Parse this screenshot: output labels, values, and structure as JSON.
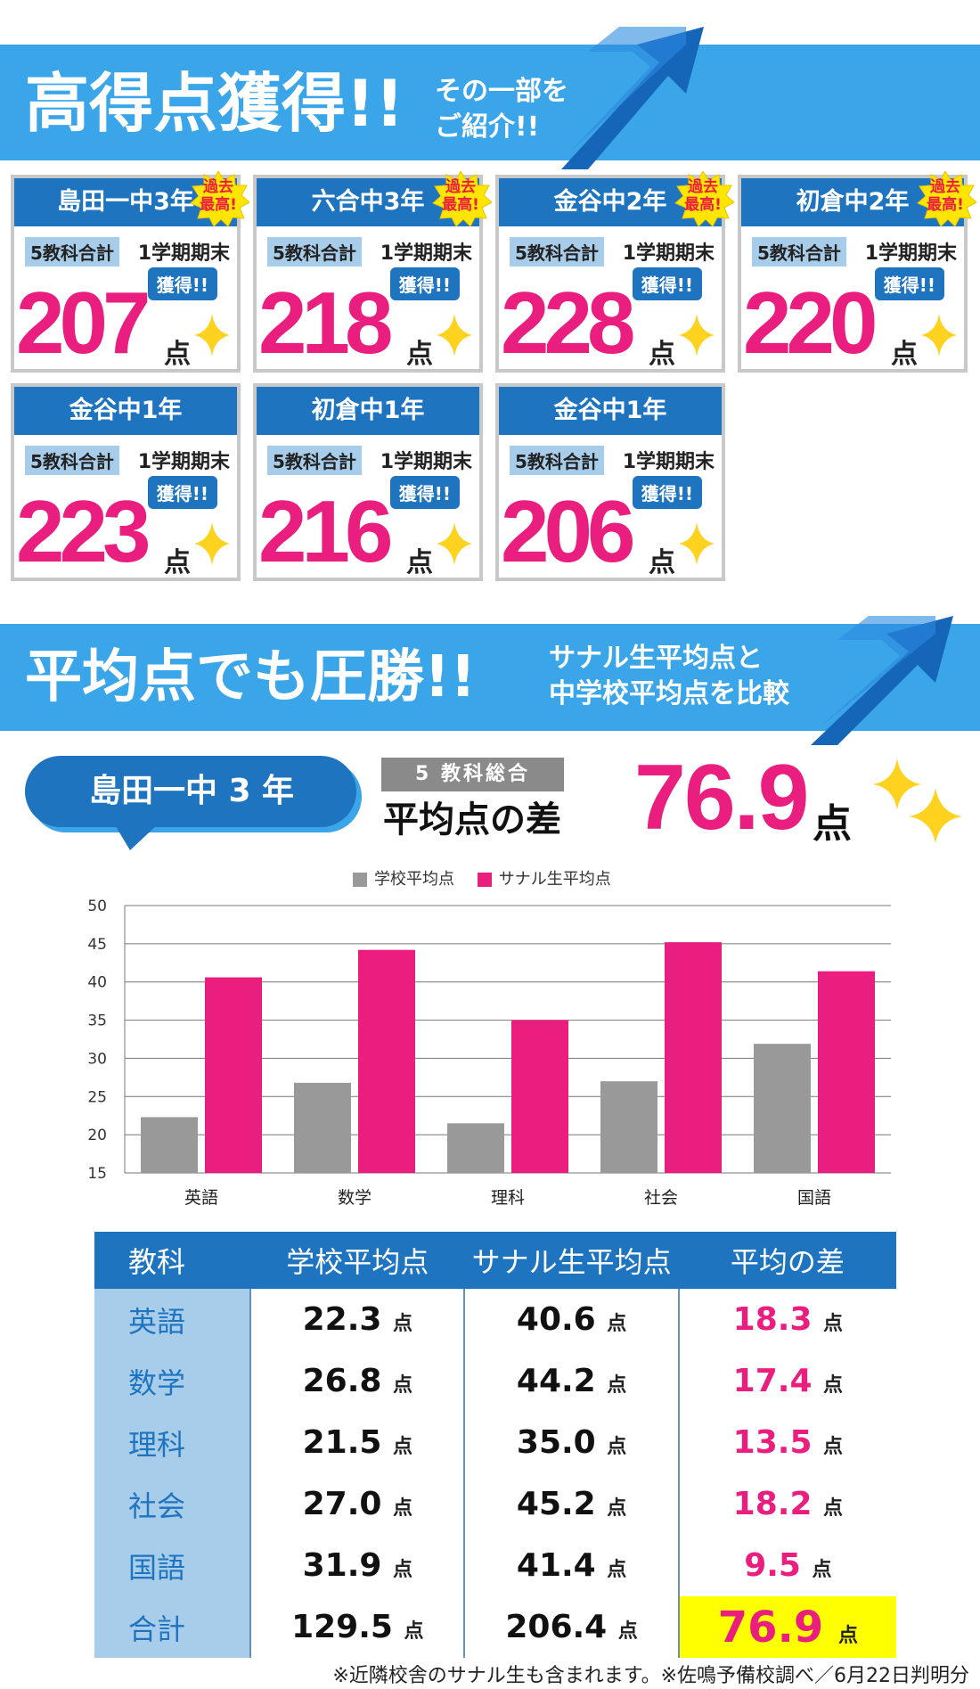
{
  "banner1": {
    "title": "高得点獲得!!",
    "sub1": "その一部を",
    "sub2": "ご紹介!!"
  },
  "badge": {
    "line1": "過去",
    "line2": "最高!"
  },
  "card_labels": {
    "tag": "5教科合計",
    "term": "1学期期末",
    "got": "獲得!!",
    "pt": "点"
  },
  "cards": [
    {
      "school": "島田一中3年",
      "score": "207",
      "record": true
    },
    {
      "school": "六合中3年",
      "score": "218",
      "record": true
    },
    {
      "school": "金谷中2年",
      "score": "228",
      "record": true
    },
    {
      "school": "初倉中2年",
      "score": "220",
      "record": true
    },
    {
      "school": "金谷中1年",
      "score": "223",
      "record": false
    },
    {
      "school": "初倉中1年",
      "score": "216",
      "record": false
    },
    {
      "school": "金谷中1年",
      "score": "206",
      "record": false
    }
  ],
  "banner2": {
    "title": "平均点でも圧勝!!",
    "sub1": "サナル生平均点と",
    "sub2": "中学校平均点を比較"
  },
  "summary": {
    "school": "島田一中 3 年",
    "tag": "5 教科総合",
    "label": "平均点の差",
    "value": "76.9",
    "pt": "点"
  },
  "chart_data": {
    "type": "bar",
    "categories": [
      "英語",
      "数学",
      "理科",
      "社会",
      "国語"
    ],
    "series": [
      {
        "name": "学校平均点",
        "values": [
          22.3,
          26.8,
          21.5,
          27.0,
          31.9
        ],
        "color": "#999999"
      },
      {
        "name": "サナル生平均点",
        "values": [
          40.6,
          44.2,
          35.0,
          45.2,
          41.4
        ],
        "color": "#e91e7e"
      }
    ],
    "ylim": [
      15,
      50
    ],
    "yticks": [
      "50",
      "45",
      "40",
      "35",
      "30",
      "25",
      "20",
      "15"
    ],
    "grid": true,
    "legend": "top"
  },
  "table": {
    "headers": [
      "教科",
      "学校平均点",
      "サナル生平均点",
      "平均の差"
    ],
    "unit": "点",
    "rows": [
      {
        "subject": "英語",
        "school": "22.3",
        "sanaru": "40.6",
        "diff": "18.3"
      },
      {
        "subject": "数学",
        "school": "26.8",
        "sanaru": "44.2",
        "diff": "17.4"
      },
      {
        "subject": "理科",
        "school": "21.5",
        "sanaru": "35.0",
        "diff": "13.5"
      },
      {
        "subject": "社会",
        "school": "27.0",
        "sanaru": "45.2",
        "diff": "18.2"
      },
      {
        "subject": "国語",
        "school": "31.9",
        "sanaru": "41.4",
        "diff": "9.5"
      },
      {
        "subject": "合計",
        "school": "129.5",
        "sanaru": "206.4",
        "diff": "76.9"
      }
    ]
  },
  "footnote": "※近隣校舎のサナル生も含まれます。※佐鳴予備校調べ／6月22日判明分"
}
